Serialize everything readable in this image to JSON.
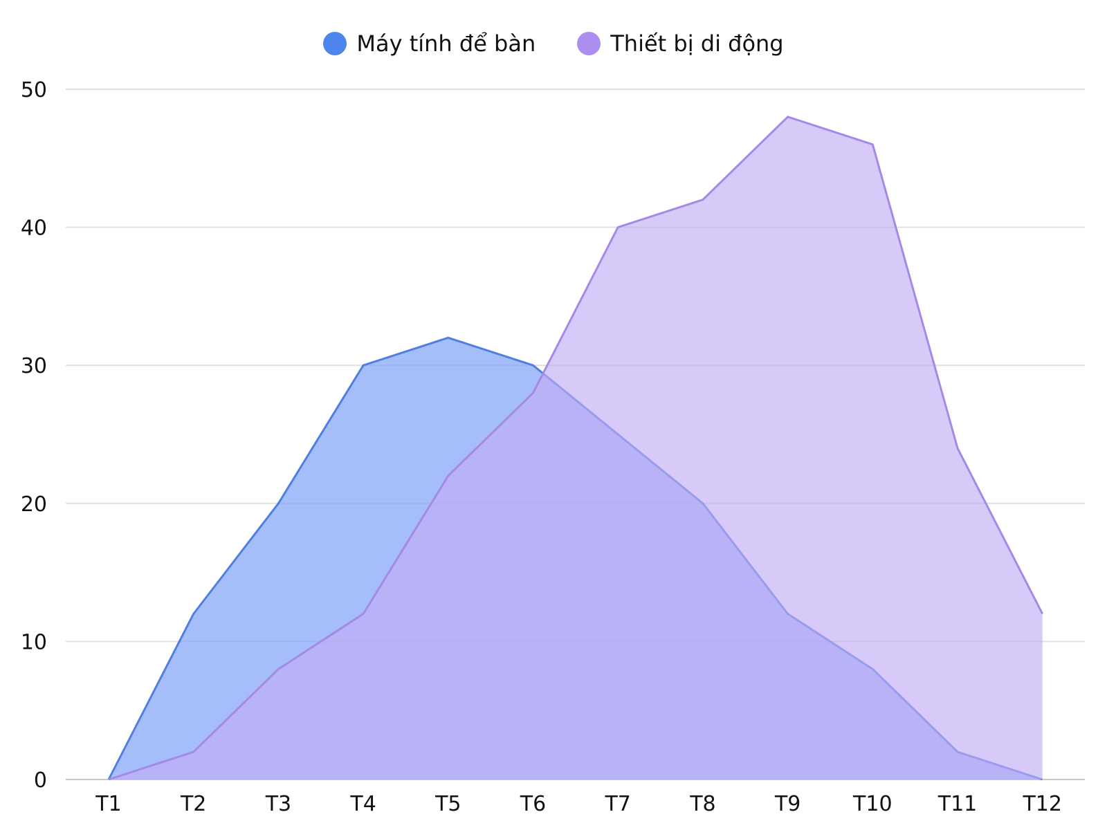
{
  "legend": [
    {
      "label": "Máy tính để bàn",
      "color": "#4f86ee"
    },
    {
      "label": "Thiết bị di động",
      "color": "#ab8ef0"
    }
  ],
  "chart_data": {
    "type": "area",
    "title": "",
    "xlabel": "",
    "ylabel": "",
    "categories": [
      "T1",
      "T2",
      "T3",
      "T4",
      "T5",
      "T6",
      "T7",
      "T8",
      "T9",
      "T10",
      "T11",
      "T12"
    ],
    "series": [
      {
        "name": "Máy tính để bàn",
        "values": [
          0,
          12,
          20,
          30,
          32,
          30,
          25,
          20,
          12,
          8,
          2,
          0
        ],
        "line_color": "#4f7fdf",
        "fill_color": "#7fa2f7",
        "fill_opacity": 0.7
      },
      {
        "name": "Thiết bị di động",
        "values": [
          0,
          2,
          8,
          12,
          22,
          28,
          40,
          42,
          48,
          46,
          24,
          12
        ],
        "line_color": "#a48ae6",
        "fill_color": "#c2acf5",
        "fill_opacity": 0.65
      }
    ],
    "y_ticks": [
      0,
      10,
      20,
      30,
      40,
      50
    ],
    "ylim": [
      0,
      50
    ],
    "grid": true,
    "legend_position": "top"
  }
}
